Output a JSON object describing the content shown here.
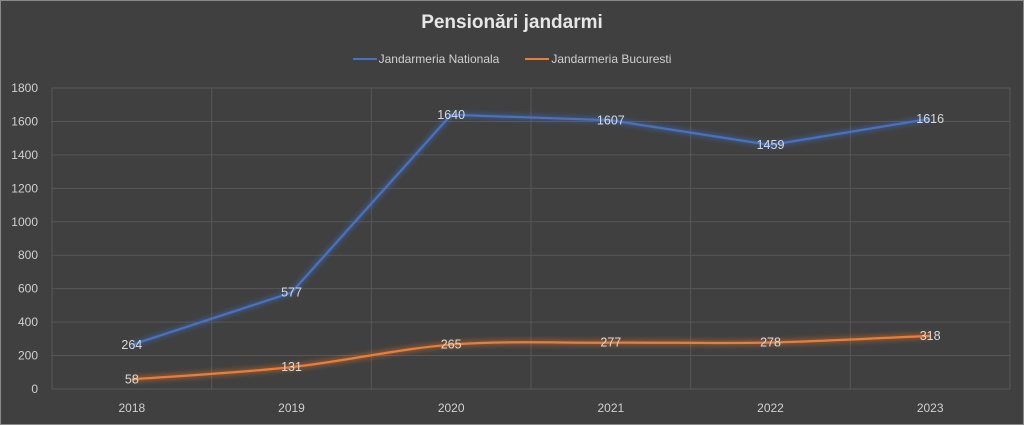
{
  "chart_data": {
    "type": "line",
    "title": "Pensionări jandarmi",
    "categories": [
      "2018",
      "2019",
      "2020",
      "2021",
      "2022",
      "2023"
    ],
    "series": [
      {
        "name": "Jandarmeria Nationala",
        "color": "#4472c4",
        "values": [
          264,
          577,
          1640,
          1607,
          1459,
          1616
        ],
        "smooth": false
      },
      {
        "name": "Jandarmeria Bucuresti",
        "color": "#ed7d31",
        "values": [
          58,
          131,
          265,
          277,
          278,
          318
        ],
        "smooth": true
      }
    ],
    "ylim": [
      0,
      1800
    ],
    "yticks": [
      "0",
      "200",
      "400",
      "600",
      "800",
      "1000",
      "1200",
      "1400",
      "1600",
      "1800"
    ],
    "xlabel": "",
    "ylabel": "",
    "grid": true,
    "legend": "top-center",
    "data_labels": true
  }
}
